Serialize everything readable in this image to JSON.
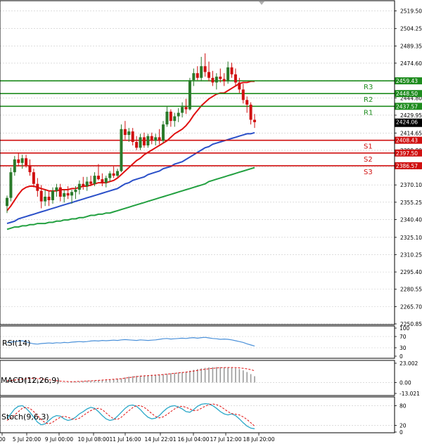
{
  "colors": {
    "background": "#ffffff",
    "grid": "#c8c8c8",
    "frame": "#000000",
    "candle_up": "#2a7a2a",
    "candle_down": "#d01010",
    "ma_fast": "#e01010",
    "ma_mid": "#2a4fc8",
    "ma_slow": "#22a040",
    "resistance": "#1e8c1e",
    "support": "#d01010",
    "rsi": "#4a90d9",
    "macd_hist": "#9a9a9a",
    "macd_signal": "#e01010",
    "stoch_main": "#2aa7c8",
    "stoch_signal": "#e01010",
    "price_label_bg": "#000000"
  },
  "chart_data": [
    {
      "type": "candlestick",
      "title": "",
      "ylim": [
        2250.85,
        2527
      ],
      "y_ticks": [
        "2519.50",
        "2504.25",
        "2489.35",
        "2474.60",
        "2459.70",
        "2444.80",
        "2429.95",
        "2414.65",
        "2399.80",
        "2385.40",
        "2370.10",
        "2355.25",
        "2340.40",
        "2325.10",
        "2310.25",
        "2295.40",
        "2280.55",
        "2265.70",
        "2250.85"
      ],
      "x_ticks": [
        "00",
        "5 Jul 20:00",
        "9 Jul 00:00",
        "10 Jul 08:00",
        "11 Jul 16:00",
        "14 Jul 22:01",
        "16 Jul 04:00",
        "17 Jul 12:00",
        "18 Jul 20:00"
      ],
      "last_price": "2424.06",
      "levels": [
        {
          "name": "R3",
          "value": 2459.43,
          "label": "2459.43",
          "kind": "resistance"
        },
        {
          "name": "R2",
          "value": 2448.5,
          "label": "2448.50",
          "kind": "resistance"
        },
        {
          "name": "R1",
          "value": 2437.57,
          "label": "2437.57",
          "kind": "resistance"
        },
        {
          "name": "S1",
          "value": 2408.43,
          "label": "2408.43",
          "kind": "support"
        },
        {
          "name": "S2",
          "value": 2397.5,
          "label": "2397.50",
          "kind": "support"
        },
        {
          "name": "S3",
          "value": 2386.57,
          "label": "2386.57",
          "kind": "support"
        }
      ],
      "candles": [
        [
          2352,
          2361,
          2346,
          2359
        ],
        [
          2359,
          2385,
          2356,
          2381
        ],
        [
          2381,
          2395,
          2378,
          2392
        ],
        [
          2392,
          2398,
          2386,
          2389
        ],
        [
          2389,
          2396,
          2384,
          2393
        ],
        [
          2393,
          2396,
          2385,
          2387
        ],
        [
          2387,
          2392,
          2378,
          2381
        ],
        [
          2381,
          2384,
          2368,
          2371
        ],
        [
          2371,
          2376,
          2360,
          2365
        ],
        [
          2365,
          2370,
          2350,
          2356
        ],
        [
          2356,
          2366,
          2352,
          2360
        ],
        [
          2360,
          2365,
          2352,
          2357
        ],
        [
          2357,
          2368,
          2354,
          2365
        ],
        [
          2365,
          2371,
          2360,
          2368
        ],
        [
          2368,
          2371,
          2356,
          2360
        ],
        [
          2360,
          2366,
          2355,
          2363
        ],
        [
          2363,
          2369,
          2358,
          2361
        ],
        [
          2361,
          2366,
          2354,
          2364
        ],
        [
          2364,
          2369,
          2358,
          2366
        ],
        [
          2366,
          2374,
          2362,
          2371
        ],
        [
          2371,
          2377,
          2366,
          2369
        ],
        [
          2369,
          2377,
          2365,
          2373
        ],
        [
          2373,
          2378,
          2369,
          2371
        ],
        [
          2371,
          2381,
          2369,
          2378
        ],
        [
          2378,
          2388,
          2374,
          2375
        ],
        [
          2375,
          2380,
          2369,
          2372
        ],
        [
          2372,
          2378,
          2368,
          2376
        ],
        [
          2376,
          2382,
          2373,
          2380
        ],
        [
          2380,
          2386,
          2376,
          2378
        ],
        [
          2378,
          2384,
          2377,
          2382
        ],
        [
          2382,
          2422,
          2381,
          2418
        ],
        [
          2418,
          2425,
          2409,
          2413
        ],
        [
          2413,
          2419,
          2407,
          2416
        ],
        [
          2416,
          2419,
          2404,
          2407
        ],
        [
          2407,
          2412,
          2400,
          2402
        ],
        [
          2402,
          2414,
          2400,
          2411
        ],
        [
          2411,
          2415,
          2402,
          2404
        ],
        [
          2404,
          2414,
          2402,
          2412
        ],
        [
          2412,
          2415,
          2405,
          2408
        ],
        [
          2408,
          2414,
          2404,
          2411
        ],
        [
          2411,
          2418,
          2405,
          2408
        ],
        [
          2408,
          2425,
          2406,
          2422
        ],
        [
          2422,
          2438,
          2420,
          2433
        ],
        [
          2433,
          2435,
          2420,
          2425
        ],
        [
          2425,
          2432,
          2420,
          2429
        ],
        [
          2429,
          2436,
          2424,
          2432
        ],
        [
          2432,
          2441,
          2428,
          2437
        ],
        [
          2437,
          2444,
          2431,
          2435
        ],
        [
          2435,
          2462,
          2434,
          2460
        ],
        [
          2460,
          2470,
          2455,
          2466
        ],
        [
          2466,
          2472,
          2460,
          2462
        ],
        [
          2462,
          2480,
          2459,
          2472
        ],
        [
          2472,
          2483,
          2463,
          2467
        ],
        [
          2467,
          2476,
          2459,
          2462
        ],
        [
          2462,
          2468,
          2455,
          2458
        ],
        [
          2458,
          2466,
          2452,
          2463
        ],
        [
          2463,
          2470,
          2458,
          2461
        ],
        [
          2461,
          2466,
          2455,
          2459
        ],
        [
          2459,
          2476,
          2457,
          2471
        ],
        [
          2471,
          2475,
          2462,
          2465
        ],
        [
          2465,
          2470,
          2455,
          2458
        ],
        [
          2458,
          2462,
          2449,
          2452
        ],
        [
          2452,
          2457,
          2440,
          2443
        ],
        [
          2443,
          2446,
          2432,
          2439
        ],
        [
          2439,
          2441,
          2422,
          2426
        ],
        [
          2426,
          2431,
          2419,
          2424
        ]
      ],
      "ma_fast": [
        2348,
        2352,
        2357,
        2362,
        2366,
        2368,
        2369,
        2369,
        2368,
        2367,
        2366,
        2365,
        2365,
        2365,
        2366,
        2366,
        2366,
        2367,
        2367,
        2368,
        2369,
        2369,
        2370,
        2371,
        2372,
        2372,
        2372,
        2373,
        2374,
        2376,
        2379,
        2382,
        2385,
        2388,
        2391,
        2393,
        2396,
        2398,
        2400,
        2402,
        2404,
        2406,
        2408,
        2411,
        2414,
        2416,
        2418,
        2421,
        2425,
        2430,
        2434,
        2438,
        2441,
        2444,
        2446,
        2448,
        2449,
        2449,
        2451,
        2453,
        2455,
        2457,
        2458,
        2458,
        2459,
        2459
      ],
      "ma_mid": [
        2337,
        2338,
        2339,
        2341,
        2342,
        2343,
        2344,
        2345,
        2346,
        2347,
        2348,
        2349,
        2350,
        2351,
        2352,
        2353,
        2354,
        2355,
        2356,
        2357,
        2358,
        2359,
        2360,
        2361,
        2362,
        2363,
        2364,
        2365,
        2366,
        2367,
        2369,
        2371,
        2372,
        2374,
        2375,
        2376,
        2377,
        2379,
        2380,
        2381,
        2382,
        2384,
        2385,
        2386,
        2388,
        2389,
        2390,
        2392,
        2394,
        2396,
        2398,
        2400,
        2402,
        2403,
        2405,
        2406,
        2407,
        2408,
        2409,
        2410,
        2411,
        2412,
        2413,
        2414,
        2414,
        2415
      ],
      "ma_slow": [
        2332,
        2333,
        2334,
        2334,
        2335,
        2335,
        2336,
        2336,
        2337,
        2337,
        2337,
        2338,
        2338,
        2339,
        2339,
        2340,
        2340,
        2341,
        2341,
        2342,
        2342,
        2343,
        2344,
        2344,
        2345,
        2345,
        2346,
        2346,
        2347,
        2348,
        2349,
        2350,
        2351,
        2352,
        2353,
        2354,
        2355,
        2356,
        2357,
        2358,
        2359,
        2360,
        2361,
        2362,
        2363,
        2364,
        2365,
        2366,
        2367,
        2368,
        2369,
        2370,
        2371,
        2373,
        2374,
        2375,
        2376,
        2377,
        2378,
        2379,
        2380,
        2381,
        2382,
        2383,
        2384,
        2385
      ]
    },
    {
      "type": "line",
      "title": "RSI(14)",
      "ylim": [
        0,
        100
      ],
      "y_ticks": [
        "100",
        "70",
        "30",
        "0"
      ],
      "series": [
        {
          "values": [
            48,
            50,
            52,
            53,
            55,
            51,
            47,
            44,
            43,
            45,
            46,
            47,
            46,
            48,
            47,
            49,
            48,
            50,
            51,
            52,
            51,
            52,
            54,
            55,
            54,
            56,
            55,
            56,
            57,
            56,
            58,
            59,
            58,
            57,
            56,
            58,
            57,
            56,
            57,
            58,
            60,
            62,
            63,
            61,
            62,
            63,
            64,
            63,
            65,
            66,
            64,
            66,
            67,
            65,
            63,
            62,
            60,
            61,
            60,
            58,
            55,
            52,
            49,
            44,
            40,
            36
          ]
        }
      ]
    },
    {
      "type": "bar",
      "title": "MACD(12,26,9)",
      "ylim": [
        -13.021,
        23.002
      ],
      "y_ticks": [
        "23.002",
        "0.00",
        "-13.021"
      ],
      "series": [
        {
          "name": "",
          "values": [
            2,
            3,
            4,
            5,
            6,
            6,
            6,
            5,
            4,
            3,
            2,
            1,
            0.5,
            0.3,
            0.2,
            0.3,
            0.5,
            0.8,
            1,
            1.3,
            1.6,
            2,
            2.3,
            2.6,
            2.9,
            3.2,
            3.5,
            3.8,
            4.2,
            4.6,
            5,
            6,
            7,
            7.5,
            8,
            8.3,
            8.5,
            8.7,
            9,
            9.3,
            9.6,
            10,
            10.5,
            11,
            11.5,
            12,
            12.5,
            13,
            14,
            15,
            16,
            16.8,
            17.5,
            18,
            18.3,
            18.4,
            18.3,
            18.1,
            17.9,
            17.5,
            17,
            16,
            14.5,
            12.5,
            10,
            7.5
          ]
        },
        {
          "name": "",
          "values": [
            2,
            2.5,
            3,
            3.5,
            4,
            4.5,
            5,
            5,
            4.8,
            4.4,
            3.8,
            3.2,
            2.6,
            2.1,
            1.6,
            1.3,
            1.1,
            1,
            1.1,
            1.3,
            1.5,
            1.8,
            2,
            2.3,
            2.6,
            2.9,
            3.2,
            3.5,
            3.8,
            4.2,
            4.6,
            5.2,
            5.8,
            6.4,
            7,
            7.5,
            7.9,
            8.2,
            8.5,
            8.8,
            9.1,
            9.5,
            9.9,
            10.4,
            10.9,
            11.4,
            11.9,
            12.4,
            13,
            13.7,
            14.4,
            15.1,
            15.8,
            16.4,
            16.9,
            17.3,
            17.6,
            17.8,
            17.9,
            17.9,
            17.8,
            17.5,
            17,
            16.3,
            15.3,
            14
          ]
        }
      ]
    },
    {
      "type": "line",
      "title": "Stoch(9,6,3)",
      "ylim": [
        0,
        100
      ],
      "y_ticks": [
        "80",
        "20",
        "0"
      ],
      "series": [
        {
          "name": "",
          "values": [
            40,
            55,
            70,
            78,
            80,
            72,
            60,
            45,
            30,
            22,
            25,
            35,
            45,
            50,
            48,
            40,
            35,
            38,
            45,
            55,
            62,
            70,
            75,
            72,
            62,
            50,
            40,
            35,
            38,
            48,
            60,
            72,
            80,
            82,
            78,
            68,
            55,
            45,
            40,
            42,
            50,
            62,
            72,
            78,
            80,
            76,
            70,
            62,
            60,
            68,
            78,
            84,
            86,
            85,
            80,
            72,
            62,
            55,
            52,
            55,
            50,
            40,
            28,
            18,
            12,
            10
          ]
        },
        {
          "name": "",
          "values": [
            35,
            42,
            52,
            62,
            72,
            75,
            72,
            62,
            50,
            38,
            28,
            25,
            30,
            38,
            45,
            48,
            45,
            40,
            38,
            42,
            50,
            58,
            65,
            70,
            72,
            68,
            58,
            48,
            40,
            38,
            45,
            55,
            65,
            74,
            80,
            80,
            75,
            66,
            56,
            47,
            43,
            46,
            53,
            62,
            70,
            76,
            78,
            75,
            70,
            65,
            66,
            72,
            78,
            83,
            85,
            83,
            78,
            70,
            62,
            56,
            54,
            52,
            46,
            38,
            28,
            18
          ]
        }
      ]
    }
  ]
}
